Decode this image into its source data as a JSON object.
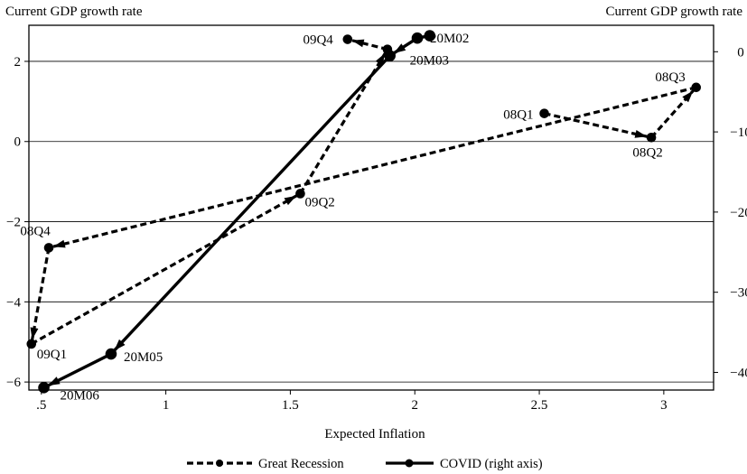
{
  "chart_data": {
    "type": "line",
    "left_axis_title": "Current GDP growth rate",
    "right_axis_title": "Current GDP growth rate",
    "xlabel": "Expected Inflation",
    "xlim": [
      0.45,
      3.2
    ],
    "ylim_left": [
      -6.2,
      2.9
    ],
    "ylim_right": [
      -42.2,
      3.3
    ],
    "x_ticks": [
      {
        "value": 0.5,
        "label": ".5"
      },
      {
        "value": 1,
        "label": "1"
      },
      {
        "value": 1.5,
        "label": "1.5"
      },
      {
        "value": 2,
        "label": "2"
      },
      {
        "value": 2.5,
        "label": "2.5"
      },
      {
        "value": 3,
        "label": "3"
      }
    ],
    "y_ticks_left": [
      {
        "value": 2,
        "label": "2"
      },
      {
        "value": 0,
        "label": "0"
      },
      {
        "value": -2,
        "label": "−2"
      },
      {
        "value": -4,
        "label": "−4"
      },
      {
        "value": -6,
        "label": "−6"
      }
    ],
    "y_ticks_right": [
      {
        "value": 0,
        "label": "0"
      },
      {
        "value": -10,
        "label": "−10"
      },
      {
        "value": -20,
        "label": "−20"
      },
      {
        "value": -30,
        "label": "−30"
      },
      {
        "value": -40,
        "label": "−40"
      }
    ],
    "grid": true,
    "series": [
      {
        "name": "Great Recession",
        "axis": "left",
        "style": "dashed",
        "color": "#000000",
        "points": [
          {
            "label": "08Q1",
            "x": 2.52,
            "y": 0.7
          },
          {
            "label": "08Q2",
            "x": 2.95,
            "y": 0.1
          },
          {
            "label": "08Q3",
            "x": 3.13,
            "y": 1.35
          },
          {
            "label": "08Q4",
            "x": 0.53,
            "y": -2.65
          },
          {
            "label": "09Q1",
            "x": 0.46,
            "y": -5.05
          },
          {
            "label": "09Q2",
            "x": 1.54,
            "y": -1.3
          },
          {
            "label": "",
            "x": 1.89,
            "y": 2.3
          },
          {
            "label": "09Q4",
            "x": 1.73,
            "y": 2.55
          }
        ]
      },
      {
        "name": "COVID (right axis)",
        "axis": "right",
        "style": "solid",
        "color": "#000000",
        "points": [
          {
            "label": "",
            "x": 2.06,
            "y": 2.0
          },
          {
            "label": "20M02",
            "x": 2.01,
            "y": 1.7
          },
          {
            "label": "20M03",
            "x": 1.9,
            "y": -0.5
          },
          {
            "label": "20M05",
            "x": 0.78,
            "y": -37.7
          },
          {
            "label": "20M06",
            "x": 0.51,
            "y": -41.9
          }
        ]
      }
    ]
  }
}
